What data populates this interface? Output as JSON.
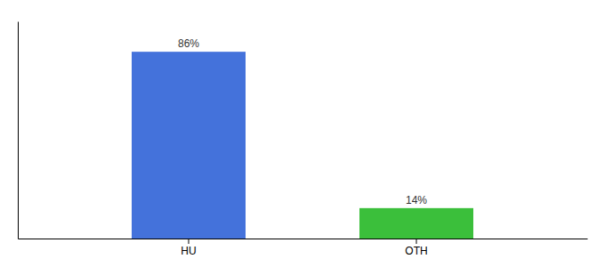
{
  "chart_data": {
    "type": "bar",
    "categories": [
      "HU",
      "OTH"
    ],
    "values": [
      86,
      14
    ],
    "colors": [
      "#4472db",
      "#3bbf3b"
    ],
    "value_labels": [
      "86%",
      "14%"
    ],
    "data_labels": true,
    "ylim": [
      0,
      100
    ],
    "tick_labels": "x",
    "grid": false
  }
}
